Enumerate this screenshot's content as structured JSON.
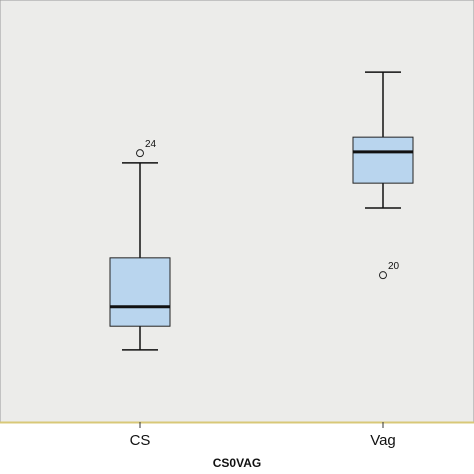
{
  "chart_data": {
    "type": "box",
    "x_label": "CS0VAG",
    "categories": [
      "CS",
      "Vag"
    ],
    "boxes": [
      {
        "min": 17.1,
        "q1": 22.7,
        "median": 27.3,
        "q3": 38.9,
        "max": 61.4,
        "outliers": [
          {
            "value": 63.7,
            "case": "24"
          }
        ]
      },
      {
        "min": 50.7,
        "q1": 56.6,
        "median": 64.0,
        "q3": 67.5,
        "max": 82.9,
        "outliers": [
          {
            "value": 34.8,
            "case": "20"
          }
        ]
      }
    ],
    "color": "#b9d5ee",
    "ylim": [
      0,
      100
    ]
  }
}
